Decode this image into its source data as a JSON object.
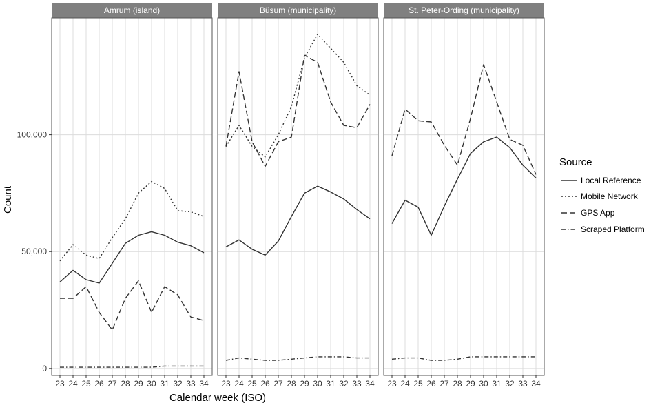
{
  "chart_data": {
    "type": "line",
    "xlabel": "Calendar week (ISO)",
    "ylabel": "Count",
    "x": [
      23,
      24,
      25,
      26,
      27,
      28,
      29,
      30,
      31,
      32,
      33,
      34
    ],
    "ylim": [
      -3000,
      150000
    ],
    "yticks": [
      0,
      50000,
      100000
    ],
    "ytick_labels": [
      "0",
      "50,000",
      "100,000"
    ],
    "grid": true,
    "legend": {
      "title": "Source",
      "placement": "right",
      "entries": [
        "Local Reference",
        "Mobile Network",
        "GPS App",
        "Scraped Platform"
      ]
    },
    "line_styles": {
      "Local Reference": "solid",
      "Mobile Network": "dotted",
      "GPS App": "dashed",
      "Scraped Platform": "dashdot"
    },
    "colors": {
      "line": "#333333",
      "strip": "#808080",
      "grid": "#dcdcdc",
      "panel_border": "#555555"
    },
    "panels": [
      {
        "title": "Amrum (island)",
        "series": [
          {
            "name": "Local Reference",
            "values": [
              37000,
              42000,
              38000,
              36500,
              45000,
              53500,
              57000,
              58500,
              57000,
              54000,
              52500,
              49500
            ]
          },
          {
            "name": "Mobile Network",
            "values": [
              46000,
              53000,
              48500,
              47000,
              56000,
              64000,
              75000,
              80000,
              77000,
              67500,
              67000,
              65000
            ]
          },
          {
            "name": "GPS App",
            "values": [
              30000,
              30000,
              35000,
              24000,
              16500,
              30000,
              37500,
              24000,
              35000,
              31500,
              22000,
              20500
            ]
          },
          {
            "name": "Scraped Platform",
            "values": [
              500,
              500,
              500,
              500,
              500,
              500,
              500,
              500,
              1000,
              1000,
              1000,
              1000
            ]
          }
        ]
      },
      {
        "title": "Büsum (municipality)",
        "series": [
          {
            "name": "Local Reference",
            "values": [
              52000,
              55000,
              51000,
              48500,
              54500,
              65000,
              75000,
              78000,
              75500,
              72500,
              68000,
              64000
            ]
          },
          {
            "name": "Mobile Network",
            "values": [
              95000,
              104000,
              95000,
              90500,
              100000,
              112000,
              133000,
              143000,
              137000,
              131000,
              121000,
              117000
            ]
          },
          {
            "name": "GPS App",
            "values": [
              95000,
              127000,
              97000,
              86500,
              97000,
              99000,
              134000,
              131000,
              114000,
              104000,
              103000,
              113000
            ]
          },
          {
            "name": "Scraped Platform",
            "values": [
              3500,
              4500,
              4000,
              3500,
              3500,
              4000,
              4500,
              5000,
              5000,
              5000,
              4500,
              4500
            ]
          }
        ]
      },
      {
        "title": "St. Peter-Ording (municipality)",
        "series": [
          {
            "name": "Local Reference",
            "values": [
              62000,
              72000,
              69000,
              57000,
              69500,
              81000,
              92000,
              97000,
              99000,
              94500,
              87000,
              81500
            ]
          },
          {
            "name": "Mobile Network",
            "values": [
              null,
              null,
              null,
              null,
              null,
              null,
              null,
              null,
              null,
              null,
              null,
              null
            ]
          },
          {
            "name": "GPS App",
            "values": [
              91000,
              111000,
              106000,
              105500,
              95500,
              87000,
              107000,
              130000,
              114000,
              98000,
              95500,
              83000
            ]
          },
          {
            "name": "Scraped Platform",
            "values": [
              4000,
              4500,
              4500,
              3500,
              3500,
              4000,
              5000,
              5000,
              5000,
              5000,
              5000,
              5000
            ]
          }
        ]
      }
    ]
  }
}
